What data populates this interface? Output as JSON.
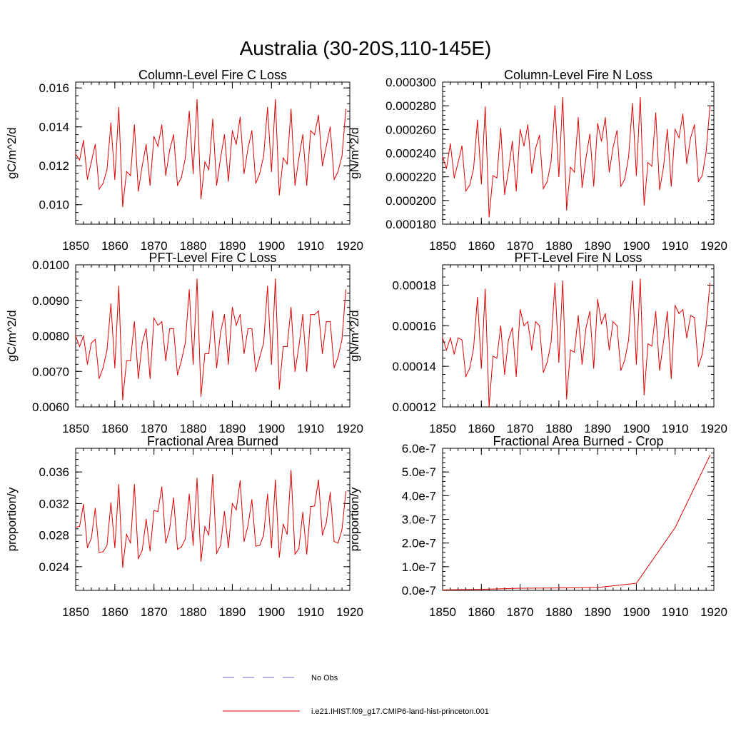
{
  "figure": {
    "title": "Australia (30-20S,110-145E)"
  },
  "legend": {
    "items": [
      {
        "label": "No Obs",
        "style": "dashed",
        "color": "#6a6ad0"
      },
      {
        "label": "i.e21.IHIST.f09_g17.CMIP6-land-hist-princeton.001",
        "style": "solid",
        "color": "#e00000"
      }
    ]
  },
  "colors": {
    "series": "#e00000",
    "axis": "#000000"
  },
  "chart_data": [
    {
      "type": "line",
      "title": "Column-Level Fire C Loss",
      "ylabel": "gC/m^2/d",
      "xlim": [
        1850,
        1920
      ],
      "ylim": [
        0.009,
        0.0163
      ],
      "xticks": [
        "1850",
        "1860",
        "1870",
        "1880",
        "1890",
        "1900",
        "1910",
        "1920"
      ],
      "yticks": [
        {
          "v": 0.01,
          "label": "0.010"
        },
        {
          "v": 0.012,
          "label": "0.012"
        },
        {
          "v": 0.014,
          "label": "0.014"
        },
        {
          "v": 0.016,
          "label": "0.016"
        }
      ],
      "x_start": 1850,
      "series": [
        {
          "values": [
            0.0126,
            0.0123,
            0.0133,
            0.0113,
            0.0122,
            0.0131,
            0.0108,
            0.0111,
            0.0118,
            0.0142,
            0.0113,
            0.015,
            0.0099,
            0.0117,
            0.0115,
            0.0141,
            0.0107,
            0.012,
            0.0131,
            0.011,
            0.0135,
            0.013,
            0.0141,
            0.0115,
            0.0128,
            0.0136,
            0.011,
            0.0114,
            0.0124,
            0.0148,
            0.0116,
            0.0154,
            0.0103,
            0.0122,
            0.0118,
            0.0144,
            0.011,
            0.0124,
            0.0136,
            0.0112,
            0.0138,
            0.0131,
            0.0145,
            0.0116,
            0.0129,
            0.0138,
            0.0111,
            0.0116,
            0.0125,
            0.015,
            0.0117,
            0.0154,
            0.0105,
            0.0124,
            0.0121,
            0.0149,
            0.011,
            0.0124,
            0.0136,
            0.011,
            0.0138,
            0.0136,
            0.0146,
            0.012,
            0.013,
            0.014,
            0.0113,
            0.0117,
            0.0125,
            0.0149
          ]
        }
      ]
    },
    {
      "type": "line",
      "title": "Column-Level Fire N Loss",
      "ylabel": "gN/m^2/d",
      "xlim": [
        1850,
        1920
      ],
      "ylim": [
        0.00018,
        0.0003
      ],
      "xticks": [
        "1850",
        "1860",
        "1870",
        "1880",
        "1890",
        "1900",
        "1910",
        "1920"
      ],
      "yticks": [
        {
          "v": 0.00018,
          "label": "0.000180"
        },
        {
          "v": 0.0002,
          "label": "0.000200"
        },
        {
          "v": 0.00022,
          "label": "0.000220"
        },
        {
          "v": 0.00024,
          "label": "0.000240"
        },
        {
          "v": 0.00026,
          "label": "0.000260"
        },
        {
          "v": 0.00028,
          "label": "0.000280"
        },
        {
          "v": 0.0003,
          "label": "0.000300"
        }
      ],
      "x_start": 1850,
      "series": [
        {
          "values": [
            0.000237,
            0.000227,
            0.000248,
            0.000219,
            0.000232,
            0.000246,
            0.000208,
            0.000213,
            0.000227,
            0.000268,
            0.000214,
            0.000279,
            0.000186,
            0.000221,
            0.000219,
            0.000261,
            0.000205,
            0.000225,
            0.00025,
            0.000208,
            0.00026,
            0.000246,
            0.000264,
            0.000223,
            0.000244,
            0.000255,
            0.00021,
            0.000216,
            0.000233,
            0.00028,
            0.00022,
            0.000287,
            0.000192,
            0.000228,
            0.000224,
            0.00027,
            0.000211,
            0.000236,
            0.000256,
            0.000212,
            0.000265,
            0.00025,
            0.00027,
            0.000224,
            0.000245,
            0.000259,
            0.000212,
            0.000218,
            0.000237,
            0.000282,
            0.000221,
            0.000287,
            0.000196,
            0.000232,
            0.000229,
            0.000274,
            0.000209,
            0.000228,
            0.00026,
            0.000212,
            0.00026,
            0.000253,
            0.000273,
            0.000231,
            0.000253,
            0.000264,
            0.000216,
            0.000221,
            0.000241,
            0.00028
          ]
        }
      ]
    },
    {
      "type": "line",
      "title": "PFT-Level Fire C Loss",
      "ylabel": "gC/m^2/d",
      "xlim": [
        1850,
        1920
      ],
      "ylim": [
        0.006,
        0.01
      ],
      "xticks": [
        "1850",
        "1860",
        "1870",
        "1880",
        "1890",
        "1900",
        "1910",
        "1920"
      ],
      "yticks": [
        {
          "v": 0.006,
          "label": "0.0060"
        },
        {
          "v": 0.007,
          "label": "0.0070"
        },
        {
          "v": 0.008,
          "label": "0.0080"
        },
        {
          "v": 0.009,
          "label": "0.0090"
        },
        {
          "v": 0.01,
          "label": "0.0100"
        }
      ],
      "x_start": 1850,
      "series": [
        {
          "values": [
            0.008,
            0.0077,
            0.008,
            0.0072,
            0.0078,
            0.0079,
            0.0068,
            0.0071,
            0.0076,
            0.0089,
            0.0071,
            0.0094,
            0.0062,
            0.0073,
            0.0073,
            0.0084,
            0.0068,
            0.0078,
            0.0082,
            0.0068,
            0.0085,
            0.0083,
            0.0084,
            0.0073,
            0.0082,
            0.0082,
            0.0069,
            0.0073,
            0.0078,
            0.0093,
            0.0072,
            0.0096,
            0.0063,
            0.0075,
            0.0075,
            0.0087,
            0.0071,
            0.0081,
            0.0086,
            0.0072,
            0.0088,
            0.0083,
            0.0086,
            0.0075,
            0.0082,
            0.0082,
            0.007,
            0.0074,
            0.0078,
            0.0094,
            0.0072,
            0.0096,
            0.0065,
            0.0077,
            0.0077,
            0.0088,
            0.007,
            0.0077,
            0.0086,
            0.007,
            0.0086,
            0.0086,
            0.0087,
            0.0075,
            0.0084,
            0.0084,
            0.0071,
            0.0074,
            0.0079,
            0.0093
          ]
        }
      ]
    },
    {
      "type": "line",
      "title": "PFT-Level Fire N Loss",
      "ylabel": "gN/m^2/d",
      "xlim": [
        1850,
        1920
      ],
      "ylim": [
        0.00012,
        0.00019
      ],
      "xticks": [
        "1850",
        "1860",
        "1870",
        "1880",
        "1890",
        "1900",
        "1910",
        "1920"
      ],
      "yticks": [
        {
          "v": 0.00012,
          "label": "0.00012"
        },
        {
          "v": 0.00014,
          "label": "0.00014"
        },
        {
          "v": 0.00016,
          "label": "0.00016"
        },
        {
          "v": 0.00018,
          "label": "0.00018"
        }
      ],
      "x_start": 1850,
      "series": [
        {
          "values": [
            0.000154,
            0.000148,
            0.000154,
            0.000146,
            0.000154,
            0.000153,
            0.000135,
            0.000139,
            0.000149,
            0.000174,
            0.000139,
            0.000178,
            0.00012,
            0.000145,
            0.000144,
            0.00016,
            0.000136,
            0.000153,
            0.000159,
            0.000135,
            0.000168,
            0.00016,
            0.000162,
            0.000148,
            0.000162,
            0.00016,
            0.000137,
            0.000142,
            0.000152,
            0.000181,
            0.000142,
            0.000182,
            0.000124,
            0.000148,
            0.000147,
            0.000165,
            0.000141,
            0.000159,
            0.000167,
            0.000139,
            0.000173,
            0.000161,
            0.000166,
            0.000148,
            0.000162,
            0.00016,
            0.000138,
            0.000143,
            0.000153,
            0.000182,
            0.000141,
            0.000183,
            0.000126,
            0.000151,
            0.00015,
            0.000167,
            0.000138,
            0.000152,
            0.000167,
            0.000134,
            0.00017,
            0.000166,
            0.000168,
            0.000154,
            0.000165,
            0.000164,
            0.00014,
            0.000146,
            0.00016,
            0.000181
          ]
        }
      ]
    },
    {
      "type": "line",
      "title": "Fractional Area Burned",
      "ylabel": "proportion/y",
      "xlim": [
        1850,
        1920
      ],
      "ylim": [
        0.021,
        0.039
      ],
      "xticks": [
        "1850",
        "1860",
        "1870",
        "1880",
        "1890",
        "1900",
        "1910",
        "1920"
      ],
      "yticks": [
        {
          "v": 0.024,
          "label": "0.024"
        },
        {
          "v": 0.028,
          "label": "0.028"
        },
        {
          "v": 0.032,
          "label": "0.032"
        },
        {
          "v": 0.036,
          "label": "0.036"
        }
      ],
      "x_start": 1850,
      "series": [
        {
          "values": [
            0.029,
            0.0291,
            0.0319,
            0.0264,
            0.0276,
            0.0314,
            0.0258,
            0.0259,
            0.0267,
            0.0321,
            0.0264,
            0.0344,
            0.0239,
            0.0281,
            0.027,
            0.0344,
            0.025,
            0.0261,
            0.03,
            0.026,
            0.0311,
            0.031,
            0.0341,
            0.027,
            0.0288,
            0.0327,
            0.0262,
            0.0265,
            0.0275,
            0.0332,
            0.0267,
            0.0352,
            0.0247,
            0.0291,
            0.028,
            0.0357,
            0.0257,
            0.0267,
            0.031,
            0.0264,
            0.032,
            0.0312,
            0.0349,
            0.0272,
            0.0292,
            0.0325,
            0.0266,
            0.0267,
            0.028,
            0.0332,
            0.0264,
            0.035,
            0.0252,
            0.0294,
            0.0281,
            0.0362,
            0.0256,
            0.0263,
            0.0309,
            0.0256,
            0.0316,
            0.0317,
            0.035,
            0.028,
            0.0296,
            0.0334,
            0.0272,
            0.027,
            0.0287,
            0.0335
          ]
        }
      ]
    },
    {
      "type": "line",
      "title": "Fractional Area Burned - Crop",
      "ylabel": "proportion/y",
      "xlim": [
        1850,
        1920
      ],
      "ylim": [
        0,
        6e-07
      ],
      "xticks": [
        "1850",
        "1860",
        "1870",
        "1880",
        "1890",
        "1900",
        "1910",
        "1920"
      ],
      "yticks": [
        {
          "v": 0,
          "label": "0.0e-7"
        },
        {
          "v": 1e-07,
          "label": "1.0e-7"
        },
        {
          "v": 2e-07,
          "label": "2.0e-7"
        },
        {
          "v": 3e-07,
          "label": "3.0e-7"
        },
        {
          "v": 4e-07,
          "label": "4.0e-7"
        },
        {
          "v": 5e-07,
          "label": "5.0e-7"
        },
        {
          "v": 6e-07,
          "label": "6.0e-7"
        }
      ],
      "x": [
        1850,
        1860,
        1870,
        1880,
        1890,
        1900,
        1910,
        1919
      ],
      "series": [
        {
          "values": [
            2e-09,
            4e-09,
            9e-09,
            1e-08,
            1.2e-08,
            3e-08,
            2.65e-07,
            5.7e-07
          ]
        }
      ]
    }
  ]
}
